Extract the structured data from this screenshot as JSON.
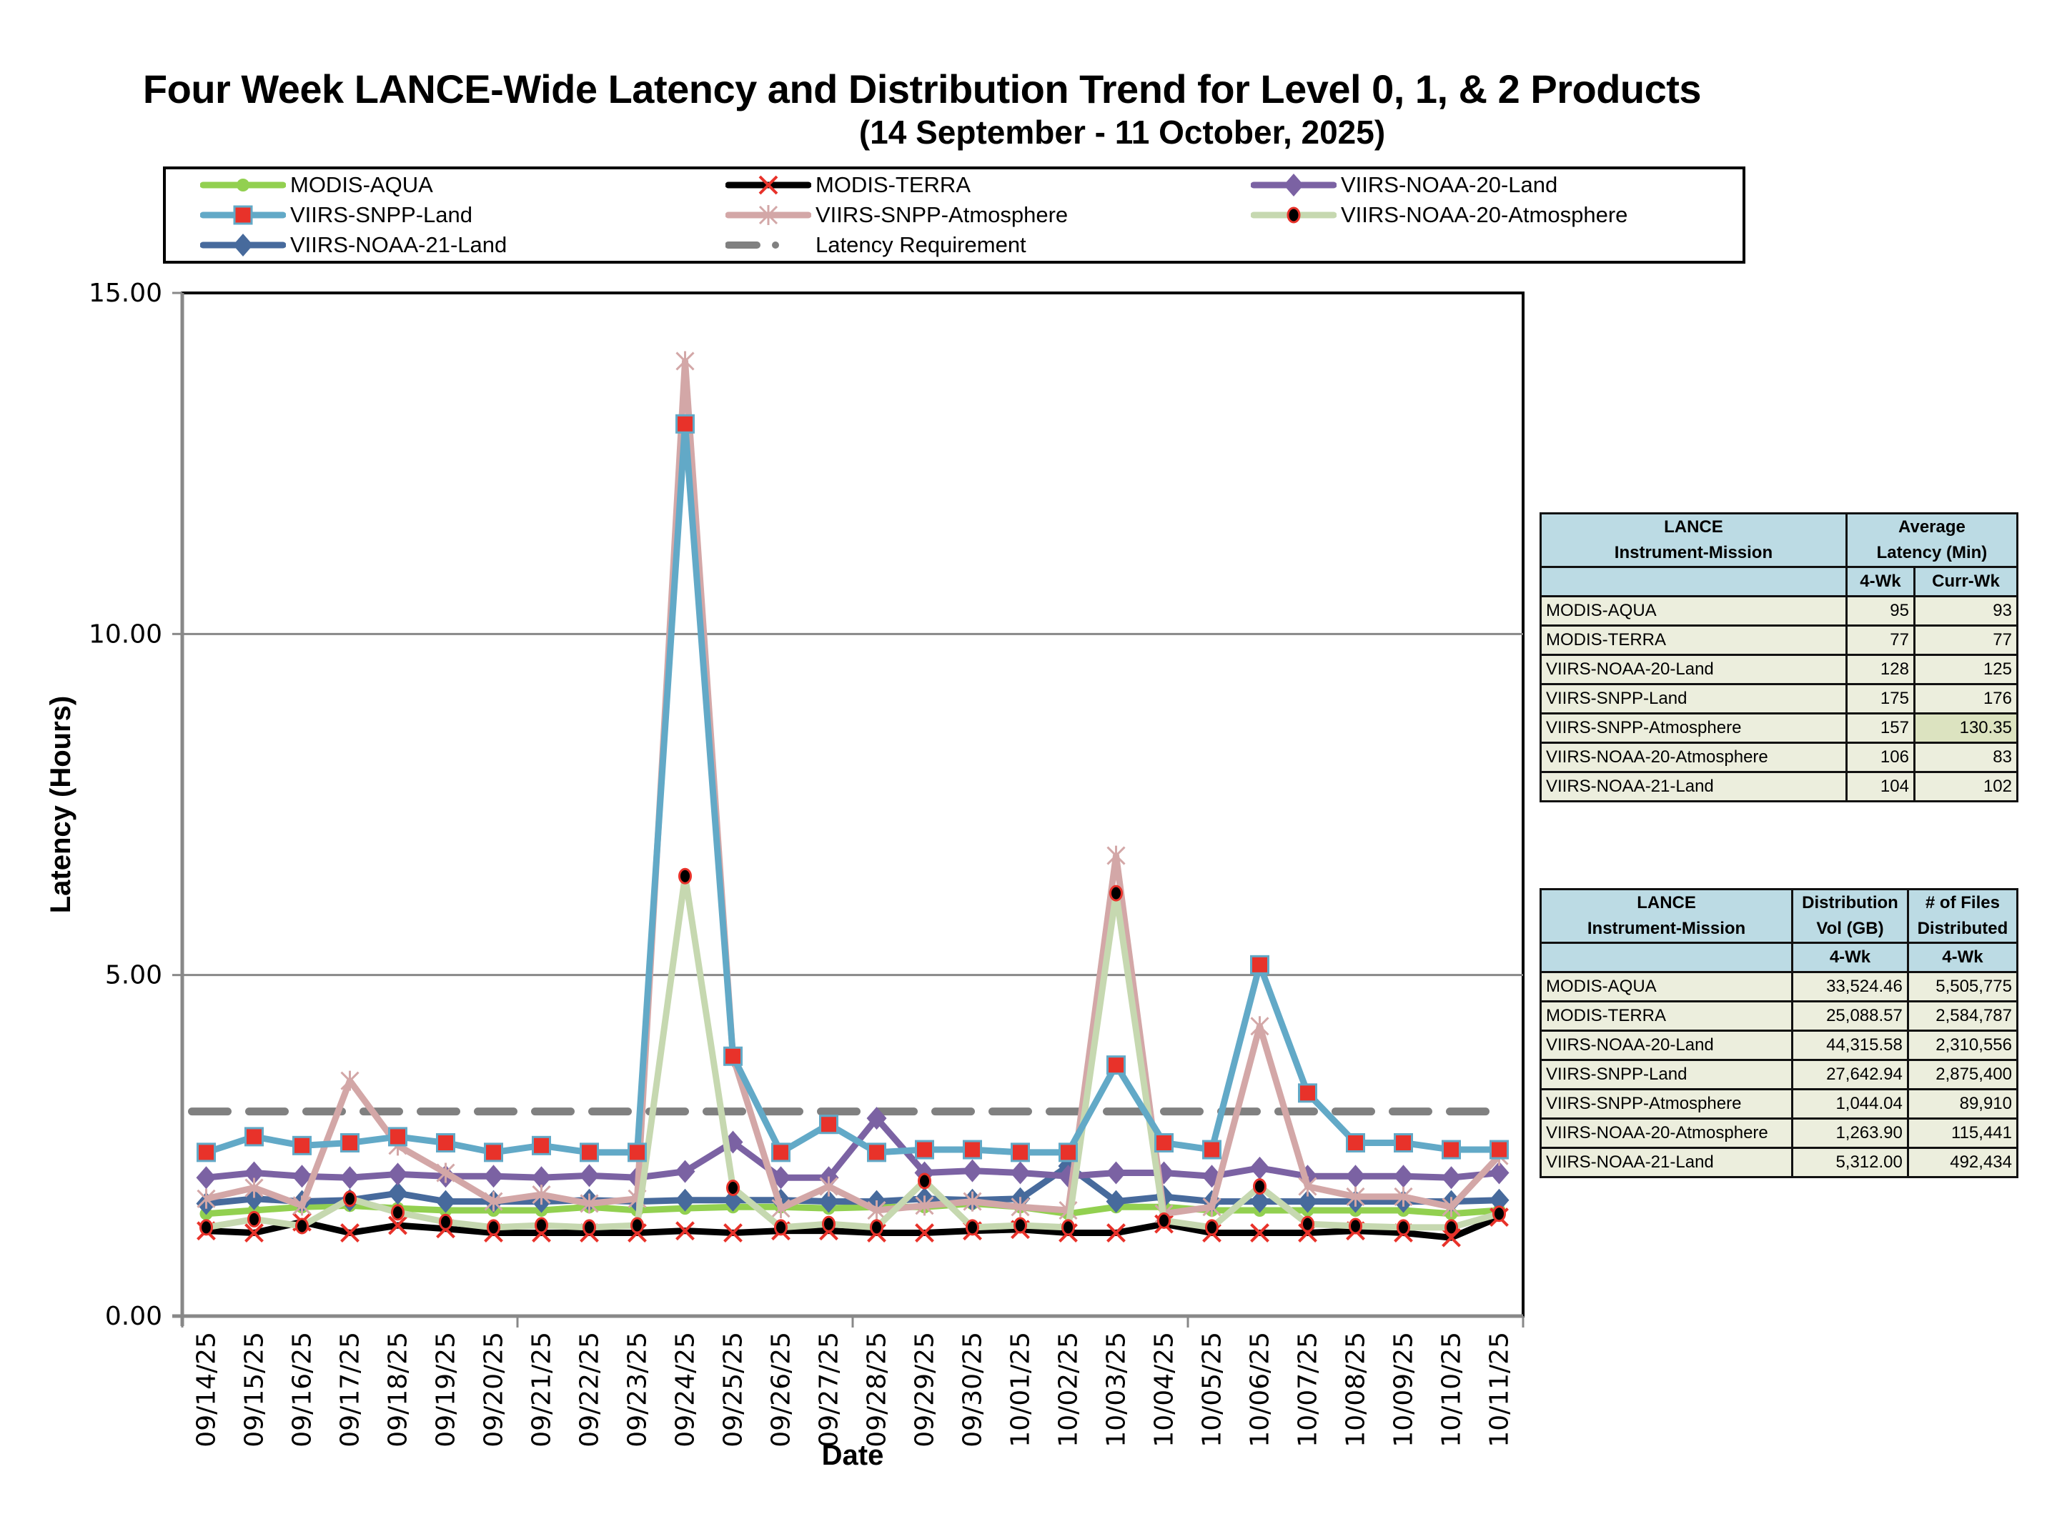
{
  "chart_data": {
    "type": "line",
    "title": "Four Week LANCE-Wide Latency and Distribution Trend for Level 0, 1, & 2 Products",
    "subtitle": "(14  September    -  11  October,  2025)",
    "xlabel": "Date",
    "ylabel": "Latency (Hours)",
    "ylim": [
      0,
      15
    ],
    "yticks": [
      "0.00",
      "5.00",
      "10.00",
      "15.00"
    ],
    "grid": true,
    "legend_position": "top",
    "categories": [
      "09/14/25",
      "09/15/25",
      "09/16/25",
      "09/17/25",
      "09/18/25",
      "09/19/25",
      "09/20/25",
      "09/21/25",
      "09/22/25",
      "09/23/25",
      "09/24/25",
      "09/25/25",
      "09/26/25",
      "09/27/25",
      "09/28/25",
      "09/29/25",
      "09/30/25",
      "10/01/25",
      "10/02/25",
      "10/03/25",
      "10/04/25",
      "10/05/25",
      "10/06/25",
      "10/07/25",
      "10/08/25",
      "10/09/25",
      "10/10/25",
      "10/11/25"
    ],
    "series": [
      {
        "name": "MODIS-AQUA",
        "color": "#92d050",
        "marker": "circle",
        "values": [
          1.5,
          1.55,
          1.6,
          1.62,
          1.58,
          1.55,
          1.55,
          1.55,
          1.6,
          1.55,
          1.58,
          1.6,
          1.6,
          1.58,
          1.6,
          1.6,
          1.65,
          1.6,
          1.5,
          1.6,
          1.6,
          1.55,
          1.55,
          1.55,
          1.55,
          1.55,
          1.5,
          1.55
        ]
      },
      {
        "name": "MODIS-TERRA",
        "color": "#000000",
        "marker": "x",
        "values": [
          1.25,
          1.22,
          1.38,
          1.22,
          1.33,
          1.28,
          1.22,
          1.22,
          1.22,
          1.22,
          1.25,
          1.22,
          1.25,
          1.25,
          1.22,
          1.22,
          1.25,
          1.27,
          1.22,
          1.22,
          1.35,
          1.22,
          1.22,
          1.22,
          1.25,
          1.22,
          1.15,
          1.45
        ]
      },
      {
        "name": "VIIRS-NOAA-20-Land",
        "color": "#7b62a3",
        "marker": "diamond",
        "values": [
          2.03,
          2.1,
          2.05,
          2.03,
          2.08,
          2.05,
          2.05,
          2.03,
          2.06,
          2.03,
          2.12,
          2.55,
          2.03,
          2.03,
          2.9,
          2.1,
          2.13,
          2.1,
          2.05,
          2.1,
          2.1,
          2.05,
          2.17,
          2.05,
          2.05,
          2.05,
          2.03,
          2.1
        ]
      },
      {
        "name": "VIIRS-SNPP-Land",
        "color": "#62a9c7",
        "marker": "square",
        "values": [
          2.4,
          2.63,
          2.5,
          2.54,
          2.63,
          2.54,
          2.4,
          2.5,
          2.4,
          2.4,
          13.08,
          3.81,
          2.4,
          2.81,
          2.4,
          2.44,
          2.44,
          2.4,
          2.4,
          3.68,
          2.54,
          2.44,
          5.15,
          3.27,
          2.54,
          2.54,
          2.44,
          2.44
        ]
      },
      {
        "name": "VIIRS-SNPP-Atmosphere",
        "color": "#d3a7a7",
        "marker": "star",
        "values": [
          1.72,
          1.88,
          1.62,
          3.45,
          2.5,
          2.1,
          1.68,
          1.78,
          1.65,
          1.72,
          14.0,
          3.8,
          1.58,
          1.9,
          1.55,
          1.62,
          1.68,
          1.6,
          1.55,
          6.75,
          1.5,
          1.6,
          4.25,
          1.9,
          1.75,
          1.75,
          1.6,
          2.35
        ]
      },
      {
        "name": "VIIRS-NOAA-20-Atmosphere",
        "color": "#c6d8b0",
        "marker": "dot",
        "values": [
          1.3,
          1.42,
          1.32,
          1.72,
          1.52,
          1.38,
          1.3,
          1.33,
          1.3,
          1.33,
          6.45,
          1.88,
          1.3,
          1.35,
          1.3,
          1.98,
          1.3,
          1.33,
          1.3,
          6.2,
          1.4,
          1.3,
          1.9,
          1.35,
          1.32,
          1.3,
          1.3,
          1.5
        ]
      },
      {
        "name": "VIIRS-NOAA-21-Land",
        "color": "#476a9c",
        "marker": "diamond",
        "values": [
          1.65,
          1.72,
          1.68,
          1.7,
          1.8,
          1.68,
          1.68,
          1.68,
          1.7,
          1.68,
          1.7,
          1.7,
          1.7,
          1.68,
          1.68,
          1.72,
          1.7,
          1.72,
          2.2,
          1.68,
          1.75,
          1.68,
          1.68,
          1.68,
          1.68,
          1.68,
          1.68,
          1.7
        ]
      },
      {
        "name": "Latency Requirement",
        "color": "#808080",
        "marker": "dash",
        "values": [
          3,
          3,
          3,
          3,
          3,
          3,
          3,
          3,
          3,
          3,
          3,
          3,
          3,
          3,
          3,
          3,
          3,
          3,
          3,
          3,
          3,
          3,
          3,
          3,
          3,
          3,
          3,
          3
        ]
      }
    ]
  },
  "latency_table": {
    "header_col1": [
      "LANCE",
      "Instrument-Mission"
    ],
    "header_col2": [
      "Average",
      "Latency (Min)"
    ],
    "sub_headers": [
      "4-Wk",
      "Curr-Wk"
    ],
    "rows": [
      {
        "name": "MODIS-AQUA",
        "four_wk": "95",
        "curr_wk": "93"
      },
      {
        "name": "MODIS-TERRA",
        "four_wk": "77",
        "curr_wk": "77"
      },
      {
        "name": "VIIRS-NOAA-20-Land",
        "four_wk": "128",
        "curr_wk": "125"
      },
      {
        "name": "VIIRS-SNPP-Land",
        "four_wk": "175",
        "curr_wk": "176"
      },
      {
        "name": "VIIRS-SNPP-Atmosphere",
        "four_wk": "157",
        "curr_wk": "130.35"
      },
      {
        "name": "VIIRS-NOAA-20-Atmosphere",
        "four_wk": "106",
        "curr_wk": "83"
      },
      {
        "name": "VIIRS-NOAA-21-Land",
        "four_wk": "104",
        "curr_wk": "102"
      }
    ]
  },
  "distribution_table": {
    "header_col1": [
      "LANCE",
      "Instrument-Mission"
    ],
    "header_col2": [
      "Distribution",
      "Vol (GB)"
    ],
    "header_col3": [
      "# of Files",
      "Distributed"
    ],
    "sub_headers": [
      "4-Wk",
      "4-Wk"
    ],
    "rows": [
      {
        "name": "MODIS-AQUA",
        "vol": "33,524.46",
        "files": "5,505,775"
      },
      {
        "name": "MODIS-TERRA",
        "vol": "25,088.57",
        "files": "2,584,787"
      },
      {
        "name": "VIIRS-NOAA-20-Land",
        "vol": "44,315.58",
        "files": "2,310,556"
      },
      {
        "name": "VIIRS-SNPP-Land",
        "vol": "27,642.94",
        "files": "2,875,400"
      },
      {
        "name": "VIIRS-SNPP-Atmosphere",
        "vol": "1,044.04",
        "files": "89,910"
      },
      {
        "name": "VIIRS-NOAA-20-Atmosphere",
        "vol": "1,263.90",
        "files": "115,441"
      },
      {
        "name": "VIIRS-NOAA-21-Land",
        "vol": "5,312.00",
        "files": "492,434"
      }
    ]
  }
}
